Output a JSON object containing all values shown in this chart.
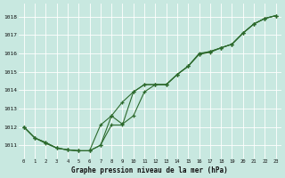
{
  "background_color": "#c8e8e0",
  "grid_color": "#b0d8d0",
  "line_color": "#2d6a2d",
  "title": "Graphe pression niveau de la mer (hPa)",
  "hours": [
    0,
    1,
    2,
    3,
    4,
    5,
    6,
    7,
    8,
    9,
    10,
    11,
    12,
    13,
    14,
    15,
    16,
    17,
    18,
    19,
    20,
    21,
    22,
    23
  ],
  "ylim": [
    1010.3,
    1018.7
  ],
  "yticks": [
    1011,
    1012,
    1013,
    1014,
    1015,
    1016,
    1017,
    1018
  ],
  "series1": [
    1012.0,
    1011.4,
    1011.1,
    1010.85,
    1010.75,
    1010.7,
    1010.7,
    1011.0,
    1012.1,
    1012.1,
    1013.9,
    1014.3,
    1014.3,
    1014.3,
    1014.85,
    1015.3,
    1015.95,
    1016.05,
    1016.3,
    1016.5,
    1017.1,
    1017.6,
    1017.9,
    1018.05
  ],
  "series2": [
    1012.0,
    1011.4,
    1011.15,
    1010.85,
    1010.75,
    1010.7,
    1010.7,
    1012.1,
    1012.6,
    1013.35,
    1013.9,
    1014.3,
    1014.3,
    1014.3,
    1014.85,
    1015.3,
    1015.95,
    1016.1,
    1016.3,
    1016.5,
    1017.1,
    1017.6,
    1017.9,
    1018.05
  ],
  "series3": [
    1012.0,
    1011.4,
    1011.15,
    1010.85,
    1010.75,
    1010.7,
    1010.7,
    1011.0,
    1012.6,
    1012.15,
    1012.6,
    1013.9,
    1014.3,
    1014.3,
    1014.85,
    1015.3,
    1016.0,
    1016.1,
    1016.3,
    1016.5,
    1017.1,
    1017.6,
    1017.9,
    1018.05
  ],
  "figsize": [
    3.2,
    2.0
  ],
  "dpi": 100
}
